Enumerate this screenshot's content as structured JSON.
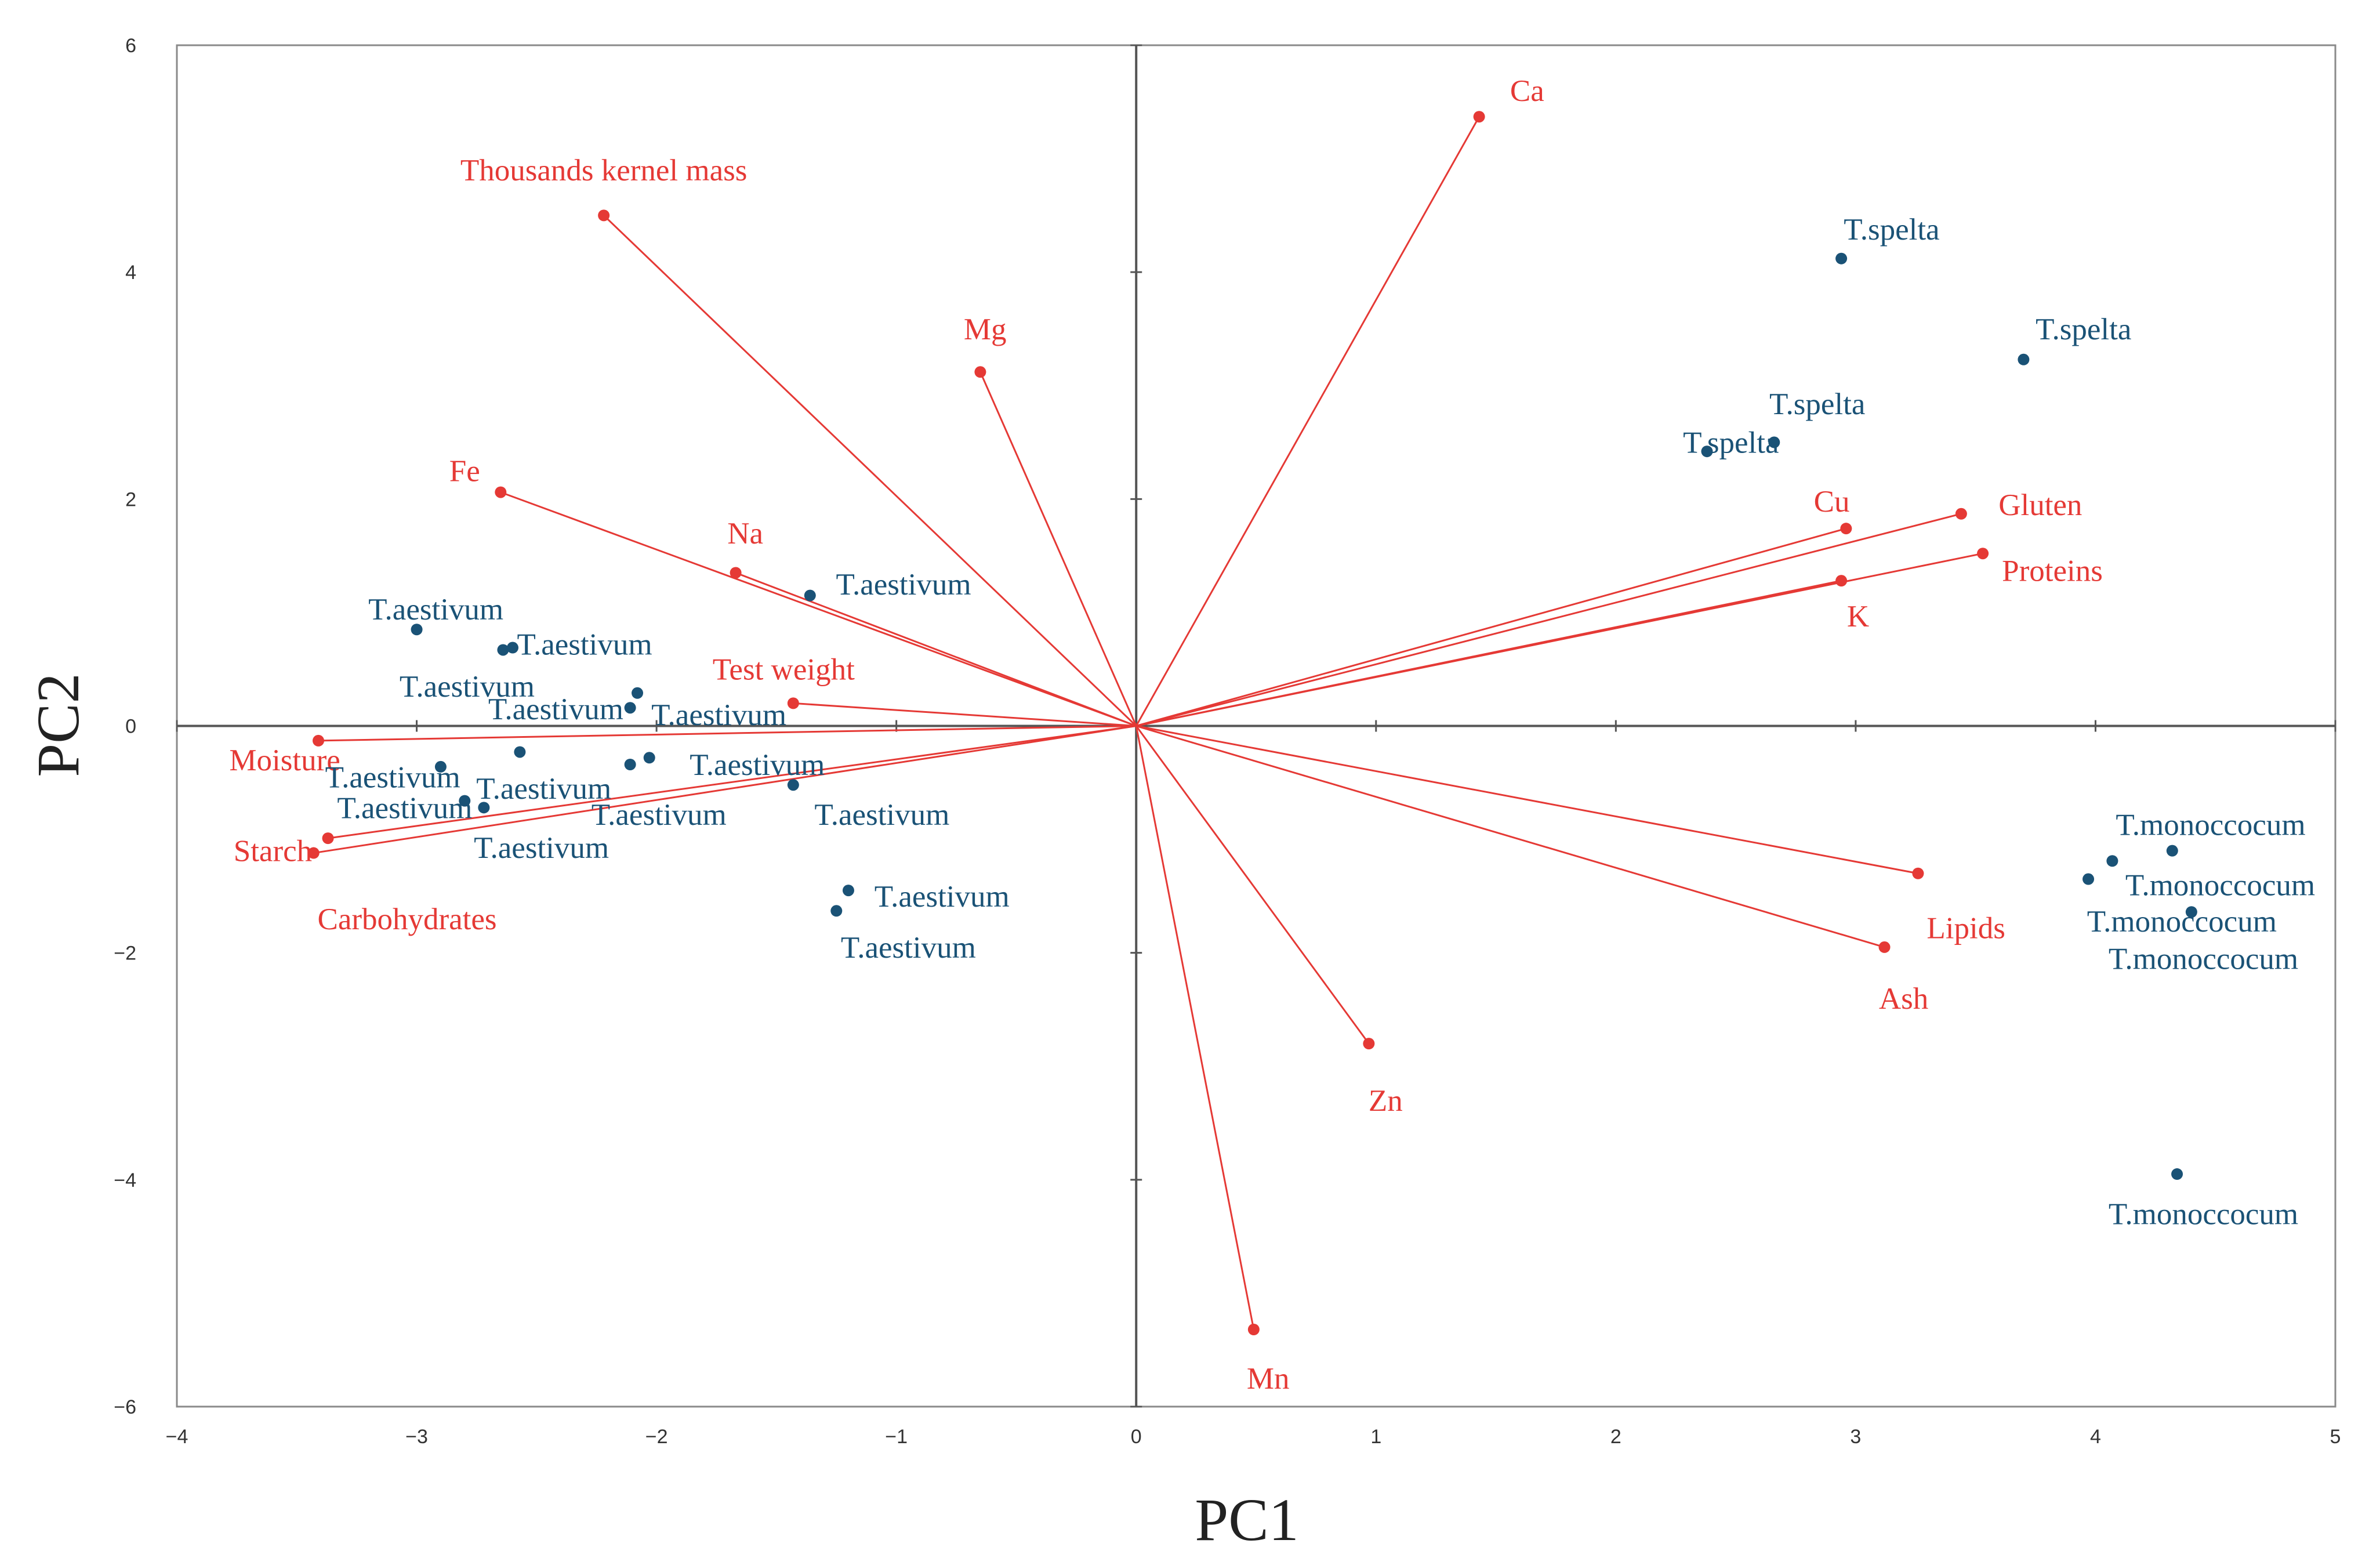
{
  "chart_data": {
    "type": "scatter",
    "title": "",
    "xlabel": "PC1",
    "ylabel": "PC2",
    "xlim": [
      -4,
      5
    ],
    "ylim": [
      -6,
      6
    ],
    "x_ticks": [
      "−4",
      "−3",
      "−2",
      "−1",
      "0",
      "1",
      "2",
      "3",
      "4",
      "5"
    ],
    "y_ticks": [
      "6",
      "4",
      "2",
      "0",
      "−2",
      "−4",
      "−6"
    ],
    "grid": false,
    "colors": {
      "variables": "#e53935",
      "observations": "#1a5276",
      "axes": "#555555"
    },
    "series": [
      {
        "name": "variables",
        "type": "biplot-loadings",
        "points": [
          {
            "label": "Ca",
            "x": 1.43,
            "y": 5.37
          },
          {
            "label": "Thousands kernel mass",
            "x": -2.22,
            "y": 4.5
          },
          {
            "label": "Mg",
            "x": -0.65,
            "y": 3.12
          },
          {
            "label": "Fe",
            "x": -2.65,
            "y": 2.06
          },
          {
            "label": "Na",
            "x": -1.67,
            "y": 1.35
          },
          {
            "label": "Test weight",
            "x": -1.43,
            "y": 0.2
          },
          {
            "label": "Moisture",
            "x": -3.41,
            "y": -0.13
          },
          {
            "label": "Starch",
            "x": -3.37,
            "y": -0.99
          },
          {
            "label": "Carbohydrates",
            "x": -3.43,
            "y": -1.12
          },
          {
            "label": "Cu",
            "x": 2.96,
            "y": 1.74
          },
          {
            "label": "Gluten",
            "x": 3.44,
            "y": 1.87
          },
          {
            "label": "Proteins",
            "x": 3.53,
            "y": 1.52
          },
          {
            "label": "K",
            "x": 2.94,
            "y": 1.28
          },
          {
            "label": "Lipids",
            "x": 3.26,
            "y": -1.3
          },
          {
            "label": "Ash",
            "x": 3.12,
            "y": -1.95
          },
          {
            "label": "Zn",
            "x": 0.97,
            "y": -2.8
          },
          {
            "label": "Mn",
            "x": 0.49,
            "y": -5.32
          }
        ]
      },
      {
        "name": "observations",
        "type": "biplot-scores",
        "points": [
          {
            "label": "T.spelta",
            "x": 2.94,
            "y": 4.12
          },
          {
            "label": "T.spelta",
            "x": 3.7,
            "y": 3.23
          },
          {
            "label": "T.spelta",
            "x": 2.66,
            "y": 2.5
          },
          {
            "label": "T.spelta",
            "x": 2.38,
            "y": 2.42
          },
          {
            "label": "T.aestivum",
            "x": -1.36,
            "y": 1.15
          },
          {
            "label": "T.aestivum",
            "x": -3.0,
            "y": 0.85
          },
          {
            "label": "T.aestivum",
            "x": -2.6,
            "y": 0.69
          },
          {
            "label": "T.aestivum",
            "x": -2.64,
            "y": 0.67
          },
          {
            "label": "T.aestivum",
            "x": -2.08,
            "y": 0.29
          },
          {
            "label": "T.aestivum",
            "x": -2.11,
            "y": 0.16
          },
          {
            "label": "T.aestivum",
            "x": -2.57,
            "y": -0.23
          },
          {
            "label": "T.aestivum",
            "x": -2.9,
            "y": -0.36
          },
          {
            "label": "T.aestivum",
            "x": -2.03,
            "y": -0.28
          },
          {
            "label": "T.aestivum",
            "x": -2.11,
            "y": -0.34
          },
          {
            "label": "T.aestivum",
            "x": -1.43,
            "y": -0.52
          },
          {
            "label": "T.aestivum",
            "x": -2.8,
            "y": -0.66
          },
          {
            "label": "T.aestivum",
            "x": -2.72,
            "y": -0.72
          },
          {
            "label": "T.aestivum",
            "x": -1.2,
            "y": -1.45
          },
          {
            "label": "T.aestivum",
            "x": -1.25,
            "y": -1.63
          },
          {
            "label": "T.monoccocum",
            "x": 4.32,
            "y": -1.1
          },
          {
            "label": "T.monoccocum",
            "x": 4.07,
            "y": -1.19
          },
          {
            "label": "T.monoccocum",
            "x": 3.97,
            "y": -1.35
          },
          {
            "label": "T.monoccocum",
            "x": 4.4,
            "y": -1.64
          },
          {
            "label": "T.monoccocum",
            "x": 4.34,
            "y": -3.95
          }
        ]
      }
    ],
    "labels": [
      {
        "series": "variables",
        "text": "Ca",
        "anchor": [
          1.43,
          5.37
        ],
        "pos": [
          1.63,
          5.6
        ]
      },
      {
        "series": "variables",
        "text": "Thousands kernel mass",
        "anchor": [
          -2.22,
          4.5
        ],
        "pos": [
          -2.22,
          4.9
        ]
      },
      {
        "series": "variables",
        "text": "Mg",
        "anchor": [
          -0.65,
          3.12
        ],
        "pos": [
          -0.63,
          3.5
        ]
      },
      {
        "series": "variables",
        "text": "Fe",
        "anchor": [
          -2.65,
          2.06
        ],
        "pos": [
          -2.8,
          2.25
        ]
      },
      {
        "series": "variables",
        "text": "Na",
        "anchor": [
          -1.67,
          1.35
        ],
        "pos": [
          -1.63,
          1.7
        ]
      },
      {
        "series": "variables",
        "text": "Test weight",
        "anchor": [
          -1.43,
          0.2
        ],
        "pos": [
          -1.47,
          0.5
        ]
      },
      {
        "series": "variables",
        "text": "Moisture",
        "anchor": [
          -3.41,
          -0.13
        ],
        "pos": [
          -3.55,
          -0.3
        ]
      },
      {
        "series": "variables",
        "text": "Starch",
        "anchor": [
          -3.37,
          -0.99
        ],
        "pos": [
          -3.6,
          -1.1
        ]
      },
      {
        "series": "variables",
        "text": "Carbohydrates",
        "anchor": [
          -3.43,
          -1.12
        ],
        "pos": [
          -3.04,
          -1.7
        ]
      },
      {
        "series": "variables",
        "text": "Cu",
        "anchor": [
          2.96,
          1.74
        ],
        "pos": [
          2.9,
          1.98
        ]
      },
      {
        "series": "variables",
        "text": "Gluten",
        "anchor": [
          3.44,
          1.87
        ],
        "pos": [
          3.77,
          1.95
        ]
      },
      {
        "series": "variables",
        "text": "Proteins",
        "anchor": [
          3.53,
          1.52
        ],
        "pos": [
          3.82,
          1.37
        ]
      },
      {
        "series": "variables",
        "text": "K",
        "anchor": [
          2.94,
          1.28
        ],
        "pos": [
          3.01,
          0.97
        ]
      },
      {
        "series": "variables",
        "text": "Lipids",
        "anchor": [
          3.26,
          -1.3
        ],
        "pos": [
          3.46,
          -1.78
        ]
      },
      {
        "series": "variables",
        "text": "Ash",
        "anchor": [
          3.12,
          -1.95
        ],
        "pos": [
          3.2,
          -2.4
        ]
      },
      {
        "series": "variables",
        "text": "Zn",
        "anchor": [
          0.97,
          -2.8
        ],
        "pos": [
          1.04,
          -3.3
        ]
      },
      {
        "series": "variables",
        "text": "Mn",
        "anchor": [
          0.49,
          -5.32
        ],
        "pos": [
          0.55,
          -5.75
        ]
      },
      {
        "series": "observations",
        "text": "T.spelta",
        "anchor": [
          2.94,
          4.12
        ],
        "pos": [
          3.15,
          4.38
        ]
      },
      {
        "series": "observations",
        "text": "T.spelta",
        "anchor": [
          3.7,
          3.23
        ],
        "pos": [
          3.95,
          3.5
        ]
      },
      {
        "series": "observations",
        "text": "T.spelta",
        "anchor": [
          2.66,
          2.5
        ],
        "pos": [
          2.84,
          2.84
        ]
      },
      {
        "series": "observations",
        "text": "T.spelta",
        "anchor": [
          2.38,
          2.42
        ],
        "pos": [
          2.48,
          2.5
        ]
      },
      {
        "series": "observations",
        "text": "T.aestivum",
        "anchor": [
          -1.36,
          1.15
        ],
        "pos": [
          -0.97,
          1.25
        ]
      },
      {
        "series": "observations",
        "text": "T.aestivum",
        "anchor": [
          -3.0,
          0.85
        ],
        "pos": [
          -2.92,
          1.03
        ]
      },
      {
        "series": "observations",
        "text": "T.aestivum",
        "anchor": [
          -2.6,
          0.69
        ],
        "pos": [
          -2.3,
          0.72
        ]
      },
      {
        "series": "observations",
        "text": "T.aestivum",
        "anchor": [
          -2.64,
          0.67
        ],
        "pos": [
          -2.79,
          0.35
        ]
      },
      {
        "series": "observations",
        "text": "T.aestivum",
        "anchor": [
          -2.08,
          0.29
        ],
        "pos": [
          -2.42,
          0.15
        ]
      },
      {
        "series": "observations",
        "text": "T.aestivum",
        "anchor": [
          -2.11,
          0.16
        ],
        "pos": [
          -1.74,
          0.1
        ]
      },
      {
        "series": "observations",
        "text": "T.aestivum",
        "anchor": [
          -2.57,
          -0.23
        ],
        "pos": [
          -2.47,
          -0.55
        ]
      },
      {
        "series": "observations",
        "text": "T.aestivum",
        "anchor": [
          -2.9,
          -0.36
        ],
        "pos": [
          -3.1,
          -0.45
        ]
      },
      {
        "series": "observations",
        "text": "T.aestivum",
        "anchor": [
          -2.03,
          -0.28
        ],
        "pos": [
          -1.58,
          -0.34
        ]
      },
      {
        "series": "observations",
        "text": "T.aestivum",
        "anchor": [
          -2.11,
          -0.34
        ],
        "pos": [
          -1.99,
          -0.78
        ]
      },
      {
        "series": "observations",
        "text": "T.aestivum",
        "anchor": [
          -1.43,
          -0.52
        ],
        "pos": [
          -1.06,
          -0.78
        ]
      },
      {
        "series": "observations",
        "text": "T.aestivum",
        "anchor": [
          -2.8,
          -0.66
        ],
        "pos": [
          -3.05,
          -0.72
        ]
      },
      {
        "series": "observations",
        "text": "T.aestivum",
        "anchor": [
          -2.72,
          -0.72
        ],
        "pos": [
          -2.48,
          -1.07
        ]
      },
      {
        "series": "observations",
        "text": "T.aestivum",
        "anchor": [
          -1.2,
          -1.45
        ],
        "pos": [
          -0.81,
          -1.5
        ]
      },
      {
        "series": "observations",
        "text": "T.aestivum",
        "anchor": [
          -1.25,
          -1.63
        ],
        "pos": [
          -0.95,
          -1.95
        ]
      },
      {
        "series": "observations",
        "text": "T.monoccocum",
        "anchor": [
          4.32,
          -1.1
        ],
        "pos": [
          4.48,
          -0.87
        ]
      },
      {
        "series": "observations",
        "text": "T.monoccocum",
        "anchor": [
          4.07,
          -1.19
        ],
        "pos": [
          4.52,
          -1.4
        ]
      },
      {
        "series": "observations",
        "text": "T.monoccocum",
        "anchor": [
          3.97,
          -1.35
        ],
        "pos": [
          4.36,
          -1.72
        ]
      },
      {
        "series": "observations",
        "text": "T.monoccocum",
        "anchor": [
          4.4,
          -1.64
        ],
        "pos": [
          4.45,
          -2.05
        ]
      },
      {
        "series": "observations",
        "text": "T.monoccocum",
        "anchor": [
          4.34,
          -3.95
        ],
        "pos": [
          4.45,
          -4.3
        ]
      }
    ]
  }
}
